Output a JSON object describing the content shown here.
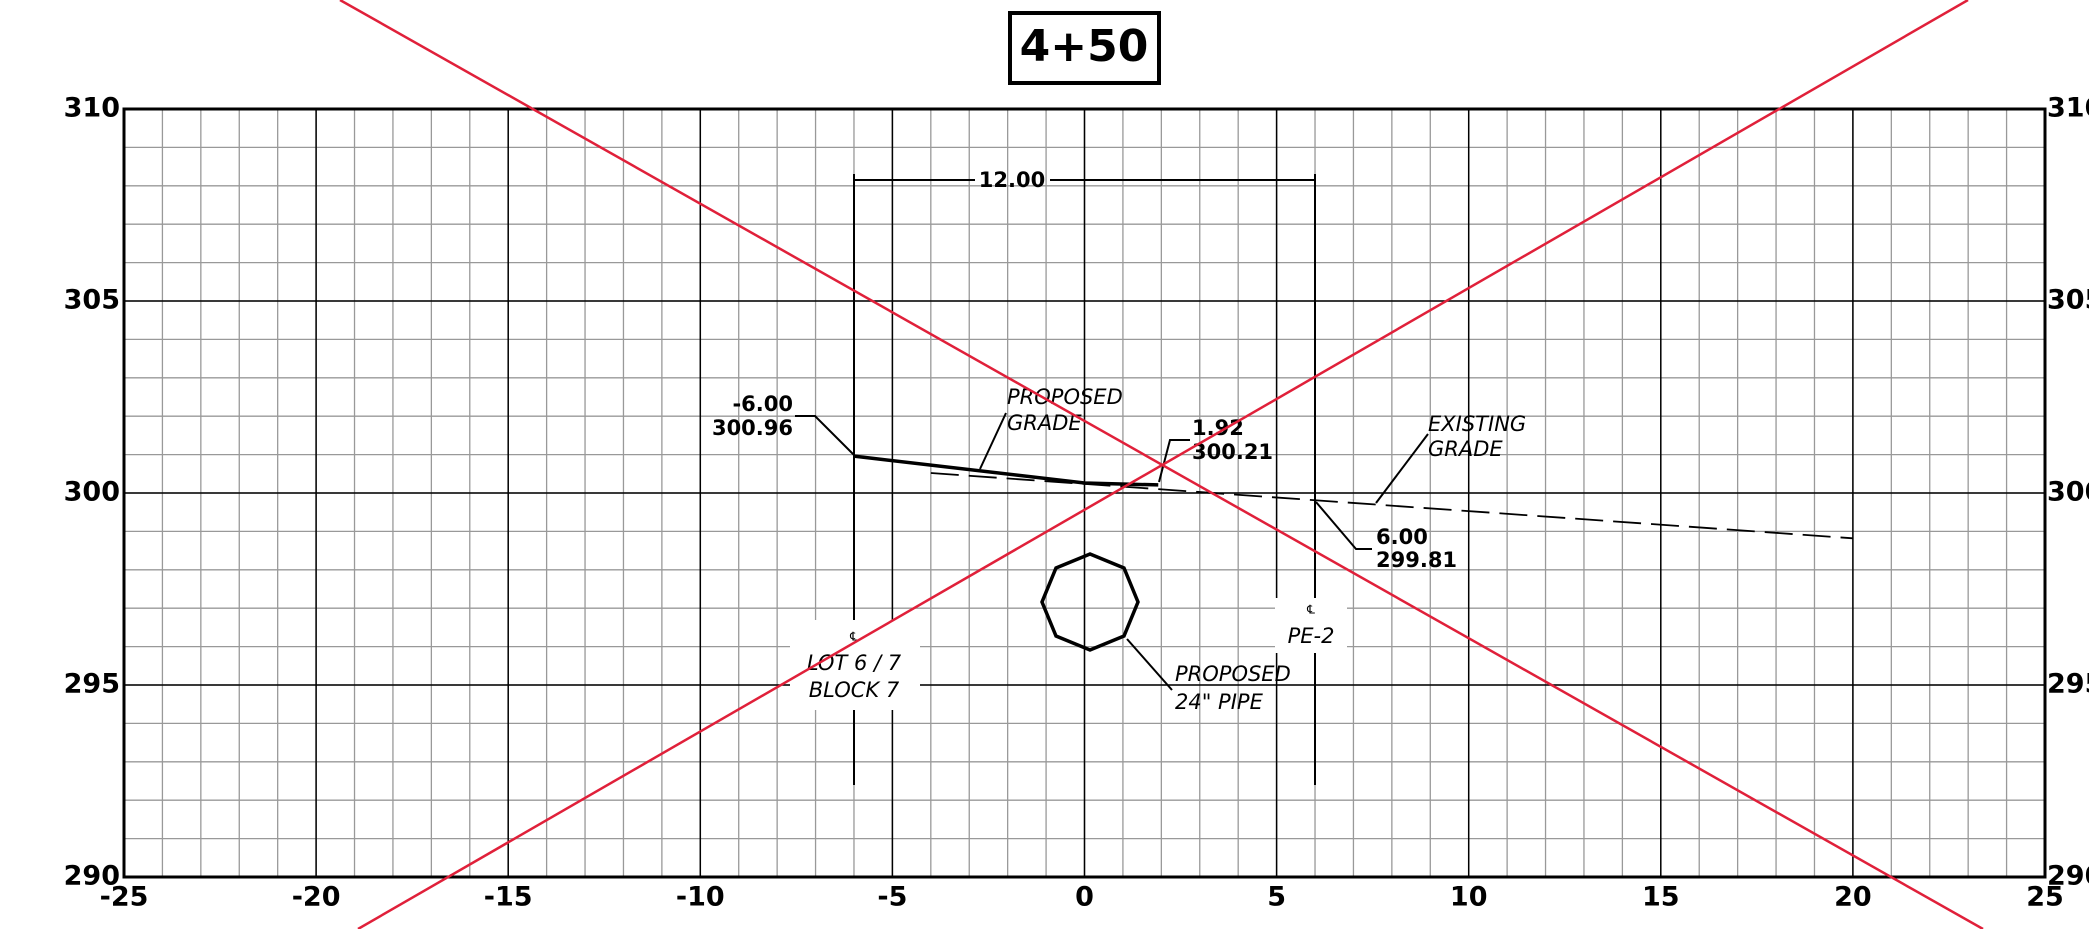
{
  "chart_data": {
    "type": "line",
    "title": "4+50",
    "xlim": [
      -25,
      25
    ],
    "xticks": [
      -25,
      -20,
      -15,
      -10,
      -5,
      0,
      5,
      10,
      15,
      20,
      25
    ],
    "ylim": [
      290,
      310
    ],
    "yticks": [
      290,
      295,
      300,
      305,
      310
    ],
    "grid": true,
    "series": [
      {
        "color": "#000000",
        "style": "solid",
        "x": [
          -6,
          0,
          1.92
        ],
        "values": [
          300.96,
          300.26,
          300.21
        ]
      },
      {
        "color": "#000000",
        "style": "dashed",
        "x": [
          -4,
          20
        ],
        "values": [
          300.52,
          298.82
        ]
      }
    ],
    "annotations": [
      "12.00",
      "-6.00",
      "300.96",
      "PROPOSED",
      "GRADE",
      "1.92",
      "300.21",
      "EXISTING",
      "GRADE",
      "6.00",
      "299.81",
      "℄",
      "LOT 6 / 7",
      "BLOCK 7",
      "℄",
      "PE-2",
      "PROPOSED",
      "24\" PIPE"
    ]
  }
}
